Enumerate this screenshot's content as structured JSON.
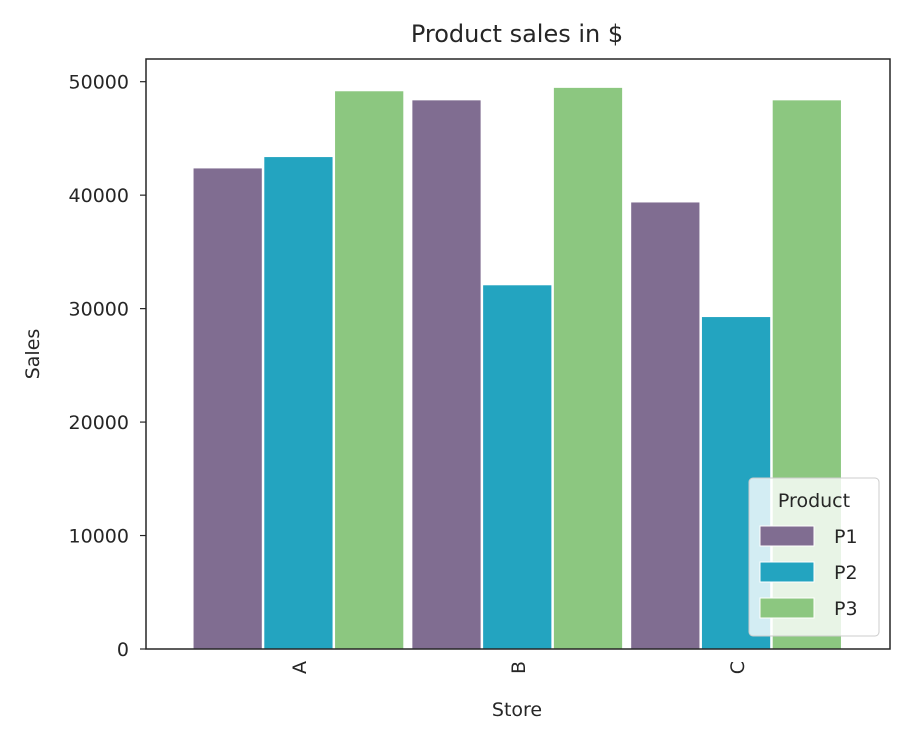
{
  "chart_data": {
    "type": "bar",
    "title": "Product sales in $",
    "xlabel": "Store",
    "ylabel": "Sales",
    "categories": [
      "A",
      "B",
      "C"
    ],
    "series": [
      {
        "name": "P1",
        "color": "#806d91",
        "values": [
          42400,
          48400,
          39400
        ]
      },
      {
        "name": "P2",
        "color": "#23a4c0",
        "values": [
          43400,
          32100,
          29300
        ]
      },
      {
        "name": "P3",
        "color": "#8cc780",
        "values": [
          49200,
          49500,
          48400
        ]
      }
    ],
    "ylim": [
      0,
      52000
    ],
    "yticks": [
      0,
      10000,
      20000,
      30000,
      40000,
      50000
    ],
    "ytick_labels": [
      "0",
      "10000",
      "20000",
      "30000",
      "40000",
      "50000"
    ],
    "grid": false,
    "legend": {
      "title": "Product",
      "position": "lower right"
    }
  }
}
